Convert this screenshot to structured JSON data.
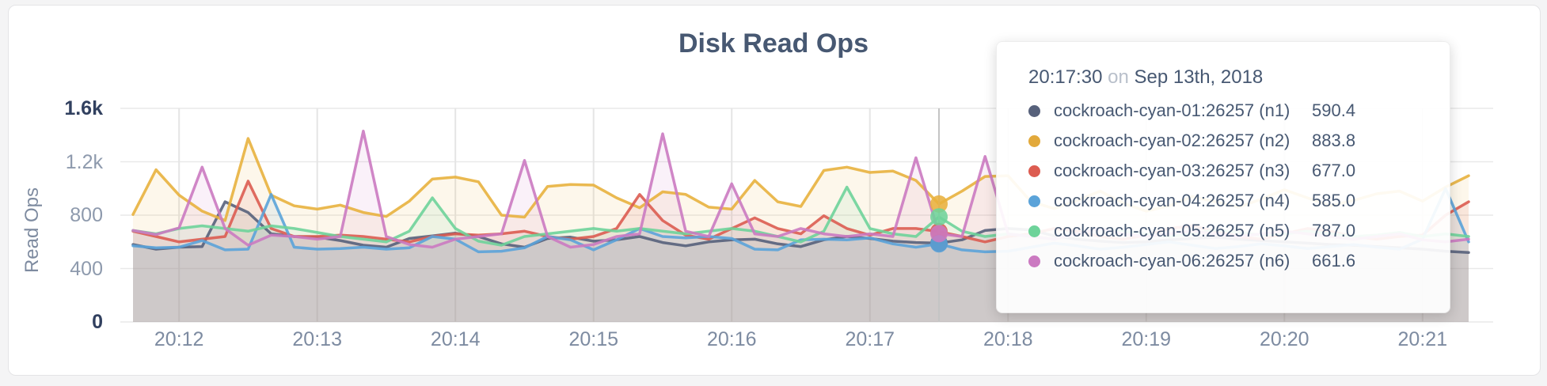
{
  "page": {
    "background": "#f4f4f5",
    "card_background": "#ffffff",
    "card_border": "#e4e4e6"
  },
  "chart": {
    "title": "Disk Read Ops",
    "y_axis_label": "Read Ops",
    "title_color": "#475872",
    "axis_label_color": "#7e8ba0",
    "grid_color": "#e9e9e9",
    "vgrid_color": "#e5e5e5",
    "hover_line_color": "#c4c4c4",
    "tick_major_color": "#31405f",
    "tick_minor_color": "#8e9aad",
    "xtick_color": "#7d8ba1"
  },
  "tooltip": {
    "time": "20:17:30",
    "joiner": "on",
    "date": "Sep 13th, 2018",
    "time_color": "#475872",
    "joiner_color": "#b9c0cb",
    "rows": [
      {
        "label": "cockroach-cyan-01:26257 (n1)",
        "value": "590.4",
        "color": "#57617b"
      },
      {
        "label": "cockroach-cyan-02:26257 (n2)",
        "value": "883.8",
        "color": "#e2a93b"
      },
      {
        "label": "cockroach-cyan-03:26257 (n3)",
        "value": "677.0",
        "color": "#dc5c51"
      },
      {
        "label": "cockroach-cyan-04:26257 (n4)",
        "value": "585.0",
        "color": "#5ba3d9"
      },
      {
        "label": "cockroach-cyan-05:26257 (n5)",
        "value": "787.0",
        "color": "#6ed39a"
      },
      {
        "label": "cockroach-cyan-06:26257 (n6)",
        "value": "661.6",
        "color": "#cb7ac1"
      }
    ]
  },
  "chart_data": {
    "type": "area",
    "title": "Disk Read Ops",
    "xlabel": "",
    "ylabel": "Read Ops",
    "ylim": [
      0,
      1600
    ],
    "grid": true,
    "start_time": "20:11:40",
    "end_time": "20:21:20",
    "interval_seconds": 10,
    "hover_time": "20:17:30",
    "hover_index": 35,
    "x_ticks": [
      {
        "label": "20:12",
        "index": 2
      },
      {
        "label": "20:13",
        "index": 8
      },
      {
        "label": "20:14",
        "index": 14
      },
      {
        "label": "20:15",
        "index": 20
      },
      {
        "label": "20:16",
        "index": 26
      },
      {
        "label": "20:17",
        "index": 32
      },
      {
        "label": "20:18",
        "index": 38
      },
      {
        "label": "20:19",
        "index": 44
      },
      {
        "label": "20:20",
        "index": 50
      },
      {
        "label": "20:21",
        "index": 56
      }
    ],
    "y_ticks": [
      {
        "label": "1.6k",
        "value": 1600,
        "major": true
      },
      {
        "label": "1.2k",
        "value": 1200,
        "major": false
      },
      {
        "label": "800",
        "value": 800,
        "major": false
      },
      {
        "label": "400",
        "value": 400,
        "major": false
      },
      {
        "label": "0",
        "value": 0,
        "major": true
      }
    ],
    "series": [
      {
        "name": "cockroach-cyan-01:26257 (n1)",
        "color": "#57617b",
        "hover_value": 590.4,
        "values": [
          580,
          545,
          560,
          565,
          900,
          820,
          660,
          640,
          635,
          610,
          575,
          560,
          625,
          645,
          665,
          640,
          585,
          560,
          625,
          635,
          605,
          615,
          640,
          595,
          570,
          600,
          615,
          620,
          585,
          565,
          615,
          640,
          625,
          605,
          595,
          590.4,
          615,
          685,
          700,
          690,
          645,
          620,
          605,
          595,
          600,
          615,
          625,
          635,
          620,
          610,
          600,
          590,
          580,
          575,
          565,
          555,
          545,
          530,
          520
        ]
      },
      {
        "name": "cockroach-cyan-02:26257 (n2)",
        "color": "#e8b13e",
        "hover_value": 883.8,
        "values": [
          805,
          1140,
          950,
          830,
          760,
          1375,
          950,
          870,
          845,
          875,
          820,
          790,
          905,
          1070,
          1085,
          1050,
          800,
          785,
          1015,
          1030,
          1025,
          930,
          855,
          975,
          955,
          860,
          845,
          1060,
          900,
          865,
          1135,
          1160,
          1120,
          1130,
          1060,
          883.8,
          980,
          1090,
          1095,
          900,
          850,
          910,
          980,
          890,
          830,
          870,
          940,
          900,
          860,
          920,
          990,
          930,
          870,
          910,
          960,
          980,
          905,
          1010,
          1095
        ]
      },
      {
        "name": "cockroach-cyan-03:26257 (n3)",
        "color": "#dc5c51",
        "hover_value": 677.0,
        "values": [
          680,
          640,
          600,
          620,
          640,
          1055,
          700,
          640,
          640,
          650,
          640,
          620,
          600,
          640,
          660,
          650,
          660,
          680,
          640,
          620,
          640,
          700,
          955,
          760,
          650,
          620,
          700,
          780,
          700,
          660,
          795,
          700,
          650,
          700,
          700,
          677,
          640,
          600,
          640,
          660,
          700,
          680,
          640,
          620,
          650,
          700,
          720,
          680,
          640,
          620,
          660,
          700,
          680,
          640,
          620,
          640,
          650,
          800,
          900
        ]
      },
      {
        "name": "cockroach-cyan-04:26257 (n4)",
        "color": "#5ba3d9",
        "hover_value": 585.0,
        "values": [
          570,
          555,
          560,
          610,
          540,
          545,
          955,
          560,
          545,
          550,
          560,
          545,
          555,
          640,
          620,
          525,
          530,
          555,
          640,
          615,
          540,
          615,
          700,
          640,
          630,
          640,
          625,
          545,
          540,
          615,
          620,
          615,
          630,
          585,
          560,
          585,
          540,
          525,
          530,
          560,
          590,
          570,
          545,
          560,
          580,
          600,
          575,
          550,
          565,
          585,
          570,
          550,
          565,
          580,
          560,
          545,
          620,
          1000,
          600
        ]
      },
      {
        "name": "cockroach-cyan-05:26257 (n5)",
        "color": "#6ed39a",
        "hover_value": 787.0,
        "values": [
          685,
          660,
          700,
          720,
          700,
          680,
          720,
          700,
          670,
          640,
          620,
          600,
          680,
          930,
          700,
          605,
          575,
          640,
          660,
          680,
          700,
          680,
          700,
          680,
          660,
          680,
          700,
          680,
          640,
          600,
          680,
          1010,
          700,
          660,
          640,
          787,
          680,
          640,
          660,
          640,
          620,
          660,
          700,
          680,
          660,
          640,
          660,
          690,
          670,
          650,
          660,
          680,
          660,
          640,
          650,
          670,
          640,
          660,
          640
        ]
      },
      {
        "name": "cockroach-cyan-06:26257 (n6)",
        "color": "#cb7ac1",
        "hover_value": 661.6,
        "values": [
          685,
          655,
          705,
          1160,
          700,
          575,
          650,
          640,
          620,
          640,
          1430,
          640,
          580,
          560,
          620,
          640,
          660,
          1210,
          640,
          560,
          580,
          640,
          660,
          1410,
          680,
          640,
          1035,
          660,
          640,
          700,
          660,
          640,
          660,
          640,
          1230,
          661.6,
          640,
          1240,
          660,
          640,
          620,
          660,
          700,
          660,
          640,
          660,
          680,
          660,
          640,
          660,
          680,
          660,
          640,
          620,
          640,
          660,
          615,
          600,
          620
        ]
      }
    ]
  }
}
